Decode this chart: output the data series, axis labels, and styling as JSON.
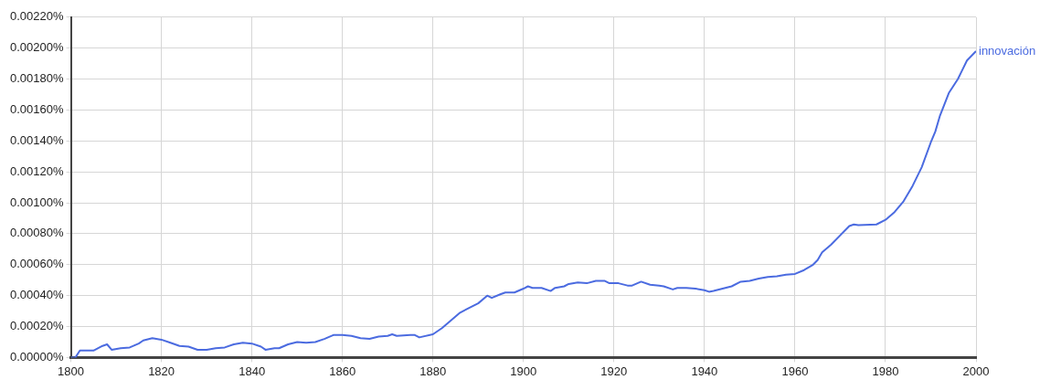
{
  "chart_data": {
    "type": "line",
    "x": [
      1800,
      1801,
      1802,
      1803,
      1805,
      1807,
      1808,
      1809,
      1811,
      1813,
      1815,
      1816,
      1818,
      1820,
      1822,
      1824,
      1826,
      1828,
      1830,
      1832,
      1834,
      1836,
      1838,
      1840,
      1842,
      1843,
      1845,
      1846,
      1848,
      1850,
      1852,
      1854,
      1856,
      1858,
      1860,
      1862,
      1864,
      1866,
      1868,
      1870,
      1871,
      1872,
      1875,
      1876,
      1877,
      1880,
      1882,
      1884,
      1886,
      1888,
      1890,
      1892,
      1893,
      1895,
      1896,
      1898,
      1900,
      1901,
      1902,
      1904,
      1906,
      1907,
      1909,
      1910,
      1912,
      1914,
      1916,
      1918,
      1919,
      1921,
      1923,
      1924,
      1926,
      1928,
      1930,
      1931,
      1933,
      1934,
      1936,
      1938,
      1940,
      1941,
      1942,
      1944,
      1946,
      1948,
      1950,
      1952,
      1954,
      1956,
      1958,
      1960,
      1962,
      1964,
      1965,
      1966,
      1968,
      1970,
      1972,
      1973,
      1974,
      1978,
      1980,
      1982,
      1984,
      1986,
      1988,
      1990,
      1991,
      1992,
      1994,
      1996,
      1997,
      1998,
      2000
    ],
    "series": [
      {
        "name": "innovación",
        "color": "#4b6be0",
        "values": [
          0,
          0,
          4.5e-05,
          4.5e-05,
          4.5e-05,
          7.5e-05,
          8.5e-05,
          5e-05,
          6e-05,
          6.5e-05,
          9e-05,
          0.00011,
          0.000125,
          0.000115,
          9.5e-05,
          7.5e-05,
          7e-05,
          5e-05,
          5e-05,
          6e-05,
          6.5e-05,
          8.5e-05,
          9.5e-05,
          9e-05,
          7e-05,
          5e-05,
          6e-05,
          6e-05,
          8.5e-05,
          0.0001,
          9.5e-05,
          0.0001,
          0.00012,
          0.000145,
          0.000145,
          0.00014,
          0.000125,
          0.00012,
          0.000135,
          0.00014,
          0.00015,
          0.00014,
          0.000145,
          0.000145,
          0.00013,
          0.00015,
          0.00019,
          0.00024,
          0.00029,
          0.00032,
          0.00035,
          0.0004,
          0.000385,
          0.00041,
          0.00042,
          0.00042,
          0.000445,
          0.00046,
          0.00045,
          0.00045,
          0.00043,
          0.00045,
          0.00046,
          0.000475,
          0.000485,
          0.00048,
          0.000495,
          0.000495,
          0.00048,
          0.00048,
          0.000465,
          0.000465,
          0.00049,
          0.00047,
          0.000465,
          0.00046,
          0.00044,
          0.00045,
          0.00045,
          0.000445,
          0.000435,
          0.000425,
          0.00043,
          0.000445,
          0.00046,
          0.00049,
          0.000495,
          0.00051,
          0.00052,
          0.000525,
          0.000535,
          0.00054,
          0.000565,
          0.0006,
          0.00063,
          0.00068,
          0.00073,
          0.00079,
          0.00085,
          0.00086,
          0.000855,
          0.00086,
          0.00089,
          0.00094,
          0.00101,
          0.00111,
          0.00123,
          0.00139,
          0.00146,
          0.00156,
          0.00171,
          0.0018,
          0.00186,
          0.00192,
          0.00198
        ]
      }
    ],
    "xlim": [
      1800,
      2000
    ],
    "xticks": [
      1800,
      1820,
      1840,
      1860,
      1880,
      1900,
      1920,
      1940,
      1960,
      1980,
      2000
    ],
    "ylim": [
      0,
      0.0022
    ],
    "yticks": [
      {
        "value": 0,
        "label": "0.00000%"
      },
      {
        "value": 0.0002,
        "label": "0.00020%"
      },
      {
        "value": 0.0004,
        "label": "0.00040%"
      },
      {
        "value": 0.0006,
        "label": "0.00060%"
      },
      {
        "value": 0.0008,
        "label": "0.00080%"
      },
      {
        "value": 0.001,
        "label": "0.00100%"
      },
      {
        "value": 0.0012,
        "label": "0.00120%"
      },
      {
        "value": 0.0014,
        "label": "0.00140%"
      },
      {
        "value": 0.0016,
        "label": "0.00160%"
      },
      {
        "value": 0.0018,
        "label": "0.00180%"
      },
      {
        "value": 0.002,
        "label": "0.00200%"
      },
      {
        "value": 0.0022,
        "label": "0.00220%"
      }
    ],
    "grid": true,
    "legend": false,
    "marker": "none",
    "line_style": "solid"
  }
}
